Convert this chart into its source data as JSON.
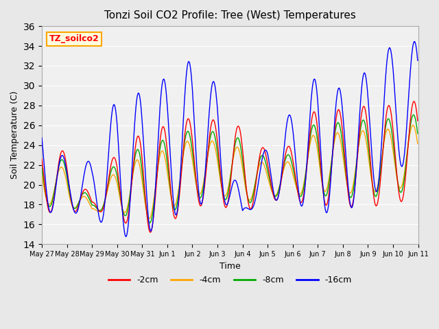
{
  "title": "Tonzi Soil CO2 Profile: Tree (West) Temperatures",
  "xlabel": "Time",
  "ylabel": "Soil Temperature (C)",
  "ylim": [
    14,
    36
  ],
  "yticks": [
    14,
    16,
    18,
    20,
    22,
    24,
    26,
    28,
    30,
    32,
    34,
    36
  ],
  "legend_label": "TZ_soilco2",
  "series_labels": [
    "-2cm",
    "-4cm",
    "-8cm",
    "-16cm"
  ],
  "series_colors": [
    "#ff0000",
    "#ffa500",
    "#00aa00",
    "#0000ff"
  ],
  "background_color": "#e8e8e8",
  "plot_bg_color": "#f0f0f0",
  "xtick_labels": [
    "May 27",
    "May 28",
    "May 29",
    "May 30",
    "May 31",
    "Jun 1",
    "Jun 2",
    "Jun 3",
    "Jun 4",
    "Jun 5",
    "Jun 6",
    "Jun 7",
    "Jun 8",
    "Jun 9",
    "Jun 10",
    "Jun 11"
  ],
  "day_data": [
    [
      17.2,
      24.5,
      17.2,
      26.7
    ],
    [
      17.2,
      23.2,
      17.2,
      22.2
    ],
    [
      17.5,
      18.5,
      17.0,
      22.4
    ],
    [
      16.8,
      23.5,
      14.8,
      29.0
    ],
    [
      14.8,
      25.2,
      14.7,
      29.3
    ],
    [
      16.0,
      26.0,
      16.5,
      30.9
    ],
    [
      17.8,
      26.8,
      17.8,
      32.7
    ],
    [
      18.0,
      26.5,
      18.5,
      30.0
    ],
    [
      17.1,
      25.8,
      17.0,
      17.5
    ],
    [
      18.5,
      23.3,
      18.5,
      24.3
    ],
    [
      18.3,
      24.0,
      18.3,
      27.5
    ],
    [
      18.0,
      28.0,
      17.0,
      31.2
    ],
    [
      17.8,
      27.5,
      17.5,
      29.5
    ],
    [
      17.7,
      28.0,
      18.0,
      31.6
    ],
    [
      18.2,
      28.0,
      21.8,
      34.2
    ],
    [
      18.5,
      28.5,
      21.9,
      34.5
    ]
  ],
  "n_days": 15,
  "n_per_day": 48,
  "peak_phase": 0.58
}
